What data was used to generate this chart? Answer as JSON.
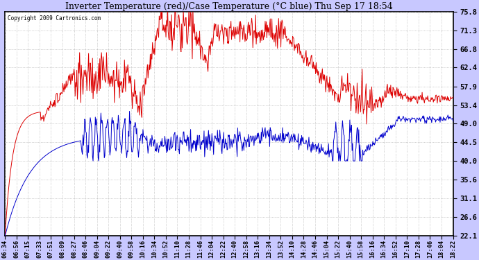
{
  "title": "Inverter Temperature (red)/Case Temperature (°C blue) Thu Sep 17 18:54",
  "copyright": "Copyright 2009 Cartronics.com",
  "ylabel_right": [
    "75.8",
    "71.3",
    "66.8",
    "62.4",
    "57.9",
    "53.4",
    "49.0",
    "44.5",
    "40.0",
    "35.6",
    "31.1",
    "26.6",
    "22.1"
  ],
  "ytick_vals": [
    75.8,
    71.3,
    66.8,
    62.4,
    57.9,
    53.4,
    49.0,
    44.5,
    40.0,
    35.6,
    31.1,
    26.6,
    22.1
  ],
  "ymin": 22.1,
  "ymax": 75.8,
  "bg_color": "#c8c8ff",
  "plot_bg_color": "#ffffff",
  "grid_color": "#aaaaaa",
  "red_color": "#dd0000",
  "blue_color": "#0000cc",
  "x_labels": [
    "06:34",
    "06:56",
    "07:15",
    "07:33",
    "07:51",
    "08:09",
    "08:27",
    "08:46",
    "09:04",
    "09:22",
    "09:40",
    "09:58",
    "10:16",
    "10:34",
    "10:52",
    "11:10",
    "11:28",
    "11:46",
    "12:04",
    "12:22",
    "12:40",
    "12:58",
    "13:16",
    "13:34",
    "13:52",
    "14:10",
    "14:28",
    "14:46",
    "15:04",
    "15:22",
    "15:40",
    "15:58",
    "16:16",
    "16:34",
    "16:52",
    "17:10",
    "17:28",
    "17:46",
    "18:04",
    "18:22"
  ],
  "n_points": 800
}
